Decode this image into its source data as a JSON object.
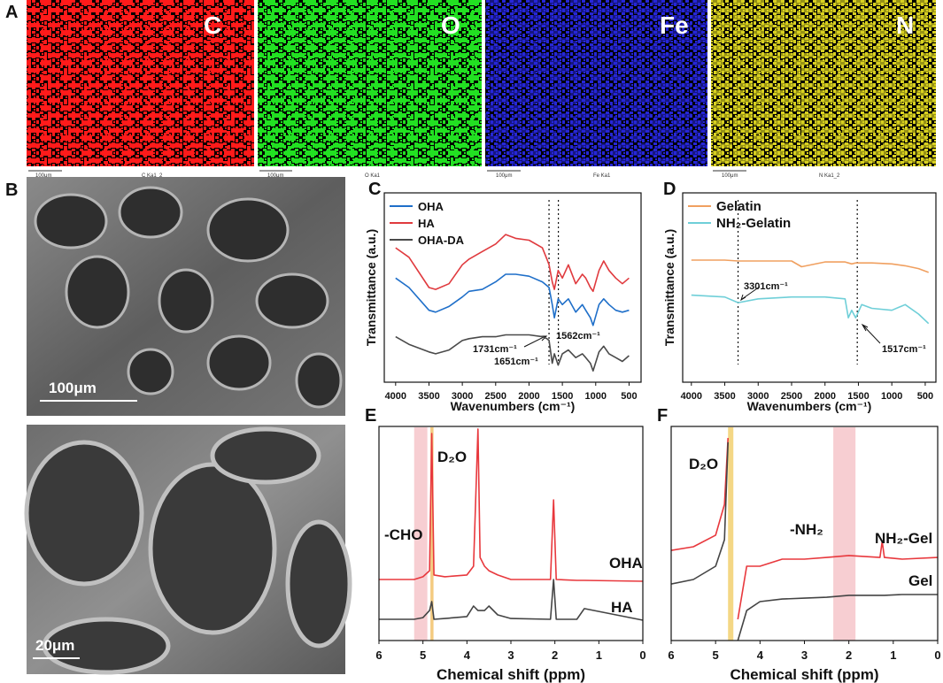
{
  "figure": {
    "panel_labels": [
      "A",
      "B",
      "C",
      "D",
      "E",
      "F"
    ],
    "maps": [
      {
        "element": "C",
        "caption": "C Ka1_2",
        "scale": "100μm",
        "color": "#ff1a1a"
      },
      {
        "element": "O",
        "caption": "O Ka1",
        "scale": "100μm",
        "color": "#22e022"
      },
      {
        "element": "Fe",
        "caption": "Fe Ka1",
        "scale": "100μm",
        "color": "#2626d8"
      },
      {
        "element": "N",
        "caption": "N Ka1_2",
        "scale": "100μm",
        "color": "#d8d020"
      }
    ],
    "sem": [
      {
        "scale": "100μm"
      },
      {
        "scale": "20μm"
      }
    ]
  },
  "chart_data": [
    {
      "type": "line",
      "x_label": "Wavenumbers (cm⁻¹)",
      "y_label": "Transmittance (a.u.)",
      "x": [
        4000,
        3800,
        3500,
        3400,
        3200,
        3000,
        2900,
        2700,
        2500,
        2350,
        2200,
        2000,
        1800,
        1731,
        1700,
        1651,
        1620,
        1562,
        1500,
        1410,
        1300,
        1200,
        1150,
        1080,
        1040,
        950,
        880,
        800,
        700,
        600,
        500
      ],
      "series": [
        {
          "name": "OHA",
          "color": "#1f6fc9",
          "values": [
            55,
            50,
            38,
            37,
            40,
            45,
            48,
            49,
            53,
            57,
            57,
            56,
            53,
            51,
            50,
            41,
            34,
            44,
            41,
            44,
            37,
            41,
            38,
            34,
            30,
            41,
            44,
            41,
            38,
            37,
            38
          ]
        },
        {
          "name": "HA",
          "color": "#e03a3e",
          "values": [
            71,
            66,
            50,
            49,
            52,
            62,
            65,
            69,
            73,
            78,
            76,
            75,
            71,
            65,
            62,
            53,
            49,
            59,
            55,
            62,
            52,
            57,
            55,
            50,
            48,
            59,
            64,
            59,
            55,
            52,
            55
          ]
        },
        {
          "name": "OHA-DA",
          "color": "#4a4a4a",
          "values": [
            24,
            20,
            16,
            15,
            17,
            22,
            23,
            24,
            24,
            25,
            25,
            25,
            24,
            23,
            22,
            10,
            15,
            9,
            15,
            17,
            13,
            15,
            13,
            10,
            6,
            16,
            19,
            15,
            13,
            11,
            14
          ]
        }
      ],
      "xlim": [
        4170,
        320
      ],
      "xticks": [
        4000,
        3500,
        3000,
        2500,
        2000,
        1500,
        1000,
        500
      ],
      "ylim": [
        0,
        100
      ],
      "vlines": [
        1700,
        1560
      ],
      "annotations": [
        "1731cm⁻¹",
        "1562cm⁻¹",
        "1651cm⁻¹"
      ],
      "legend": "upper left"
    },
    {
      "type": "line",
      "x_label": "Wavenumbers (cm⁻¹)",
      "y_label": "Transmittance (a.u.)",
      "x": [
        4000,
        3500,
        3301,
        3000,
        2500,
        2350,
        2000,
        1700,
        1650,
        1600,
        1540,
        1450,
        1300,
        1000,
        800,
        600,
        450
      ],
      "series": [
        {
          "name": "Gelatin",
          "color": "#f0a060",
          "values": [
            64.5,
            64.5,
            64,
            64,
            64,
            61,
            63.5,
            63.5,
            63,
            62.5,
            63,
            63,
            63,
            62.5,
            61.5,
            60,
            58
          ]
        },
        {
          "name": "NH₂-Gelatin",
          "color": "#6fcfd8",
          "values": [
            46,
            45,
            42,
            44,
            45,
            45,
            45,
            44,
            34,
            38,
            34,
            41,
            39,
            38,
            41,
            36,
            31
          ]
        }
      ],
      "xlim": [
        4130,
        340
      ],
      "xticks": [
        4000,
        3500,
        3000,
        2500,
        2000,
        1500,
        1000,
        500
      ],
      "ylim": [
        0,
        100
      ],
      "vlines": [
        3301,
        1517
      ],
      "annotations": [
        "3301cm⁻¹",
        "1517cm⁻¹"
      ],
      "legend": "upper left"
    },
    {
      "type": "line",
      "x_label": "Chemical shift (ppm)",
      "x": [
        6,
        5.2,
        5,
        4.85,
        4.8,
        4.75,
        4.5,
        4,
        3.85,
        3.75,
        3.7,
        3.6,
        3.5,
        3.3,
        3,
        2.1,
        2.03,
        1.97,
        1.5,
        1.33,
        0
      ],
      "series": [
        {
          "name": "OHA",
          "color": "#e8383d",
          "values": [
            28.5,
            28.5,
            29.8,
            32.6,
            96.7,
            30.6,
            29.8,
            30.6,
            34.7,
            98.8,
            38.8,
            34.7,
            32.6,
            30.6,
            28.5,
            28.5,
            65.7,
            28.5,
            28.1,
            28.1,
            27.7
          ]
        },
        {
          "name": "HA",
          "color": "#444444",
          "values": [
            9.9,
            9.9,
            10.7,
            14,
            18.2,
            9.9,
            10.3,
            11.2,
            16.1,
            14,
            14,
            14,
            16.1,
            12,
            10.3,
            9.9,
            28.5,
            9.9,
            9.9,
            14.9,
            9.5
          ]
        }
      ],
      "xlim": [
        6,
        0
      ],
      "xticks": [
        6,
        5,
        4,
        3,
        2,
        1,
        0
      ],
      "ylim": [
        0,
        100
      ],
      "highlights": [
        {
          "from": 5.2,
          "to": 4.9,
          "color": "#f6c6ca"
        },
        {
          "from": 4.83,
          "to": 4.76,
          "color": "#f2c26a"
        }
      ],
      "annotations": [
        "D₂O",
        "-CHO",
        "OHA",
        "HA"
      ]
    },
    {
      "type": "line",
      "x_label": "Chemical shift (ppm)",
      "x": [
        6,
        5.5,
        5,
        4.8,
        4.72,
        4.6,
        4.5,
        4.3,
        4,
        3.5,
        3,
        2.5,
        2,
        1.3,
        1.25,
        1.2,
        0.8,
        0
      ],
      "series": [
        {
          "name": "NH₂-Gel",
          "color": "#e8383d",
          "values": [
            42.1,
            43.8,
            49.2,
            63.6,
            94.6,
            null,
            9.9,
            34.7,
            34.7,
            38,
            38,
            38.8,
            39.7,
            38.8,
            46.3,
            38.8,
            38,
            38.8
          ]
        },
        {
          "name": "Gel",
          "color": "#444444",
          "values": [
            26.4,
            28.5,
            34.7,
            47.1,
            92.6,
            null,
            0,
            14,
            18.2,
            19.4,
            19.8,
            20.2,
            21.1,
            21.1,
            21.1,
            21.1,
            21.5,
            21.5
          ]
        }
      ],
      "xlim": [
        6,
        0
      ],
      "xticks": [
        6,
        5,
        4,
        3,
        2,
        1,
        0
      ],
      "ylim": [
        0,
        100
      ],
      "highlights": [
        {
          "from": 4.72,
          "to": 4.6,
          "color": "#f2d070"
        },
        {
          "from": 2.35,
          "to": 1.85,
          "color": "#f6c6ca"
        }
      ],
      "annotations": [
        "D₂O",
        "-NH₂",
        "NH₂-Gel",
        "Gel"
      ]
    }
  ]
}
